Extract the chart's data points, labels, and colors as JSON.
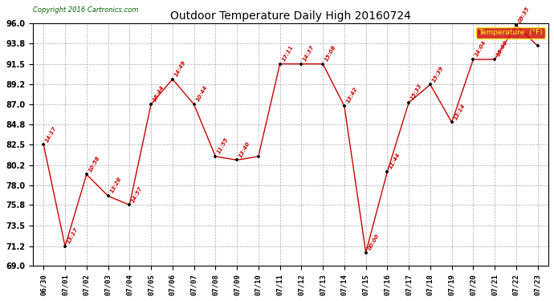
{
  "title": "Outdoor Temperature Daily High 20160724",
  "copyright": "Copyright 2016 Cartronics.com",
  "legend_label": "Temperature  (°F)",
  "dates": [
    "06/30",
    "07/01",
    "07/02",
    "07/03",
    "07/04",
    "07/05",
    "07/06",
    "07/07",
    "07/08",
    "07/09",
    "07/10",
    "07/11",
    "07/12",
    "07/13",
    "07/14",
    "07/15",
    "07/16",
    "07/17",
    "07/18",
    "07/19",
    "07/20",
    "07/21",
    "07/22",
    "07/23"
  ],
  "temps": [
    82.5,
    71.2,
    79.2,
    76.8,
    75.8,
    87.0,
    89.8,
    87.0,
    81.2,
    80.8,
    81.2,
    91.5,
    91.5,
    91.5,
    86.8,
    70.5,
    79.5,
    87.2,
    89.2,
    85.0,
    92.0,
    92.0,
    95.8,
    93.5
  ],
  "time_labels": [
    "14:17",
    "13:17",
    "10:58",
    "13:28",
    "14:57",
    "16:44",
    "14:49",
    "10:44",
    "11:55",
    "13:40",
    "",
    "17:11",
    "14:37",
    "15:08",
    "13:42",
    "00:00",
    "11:44",
    "15:33",
    "15:39",
    "13:14",
    "14:04",
    "16:00",
    "09:35",
    ""
  ],
  "ylim": [
    69.0,
    96.0
  ],
  "yticks": [
    69.0,
    71.2,
    73.5,
    75.8,
    78.0,
    80.2,
    82.5,
    84.8,
    87.0,
    89.2,
    91.5,
    93.8,
    96.0
  ],
  "line_color": "#cc0000",
  "marker_color": "#000000",
  "bg_color": "#ffffff",
  "grid_color": "#aaaaaa",
  "title_color": "#000000",
  "legend_bg": "#cc0000",
  "legend_fg": "#ffff00"
}
